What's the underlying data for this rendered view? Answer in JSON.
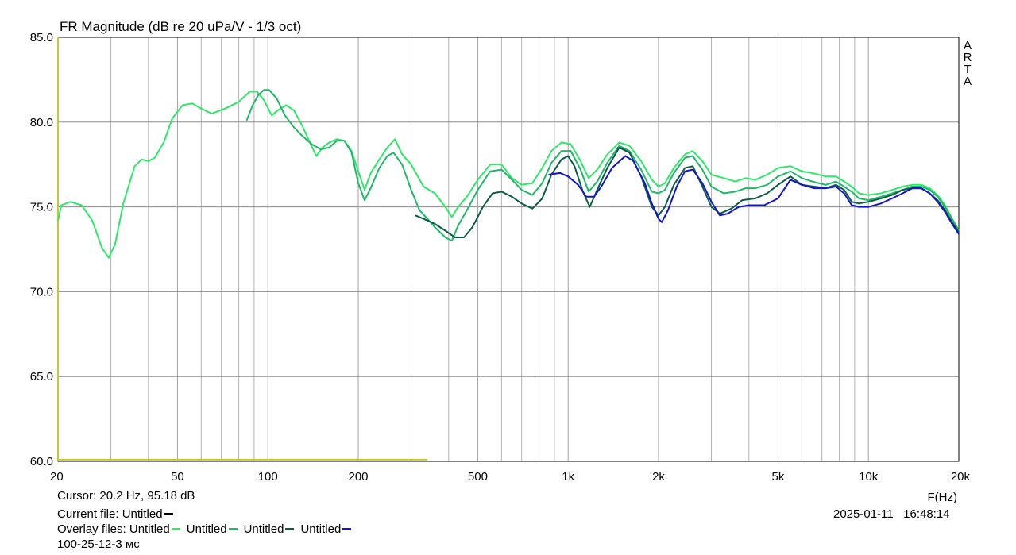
{
  "chart_data": {
    "type": "line",
    "title": "FR Magnitude (dB re 20 uPa/V - 1/3 oct)",
    "xlabel": "F(Hz)",
    "x_scale": "log",
    "xlim": [
      20,
      20000
    ],
    "ylim": [
      60,
      85
    ],
    "grid": true,
    "x_ticks": [
      20,
      50,
      100,
      200,
      500,
      1000,
      2000,
      5000,
      10000,
      20000
    ],
    "x_tick_labels": [
      "20",
      "50",
      "100",
      "200",
      "500",
      "1k",
      "2k",
      "5k",
      "10k",
      "20k"
    ],
    "x_minor_grid": [
      30,
      40,
      60,
      70,
      80,
      90,
      300,
      400,
      600,
      700,
      800,
      900,
      3000,
      4000,
      6000,
      7000,
      8000,
      9000
    ],
    "y_ticks": [
      60,
      65,
      70,
      75,
      80,
      85
    ],
    "y_tick_labels": [
      "60.0",
      "65.0",
      "70.0",
      "75.0",
      "80.0",
      "85.0"
    ],
    "side_label": "ARTA",
    "series": [
      {
        "color": "#c8c832",
        "points": [
          [
            20,
            60.1
          ],
          [
            20,
            85
          ],
          [
            20,
            60.1
          ],
          [
            340,
            60.1
          ]
        ]
      },
      {
        "color": "#2ee86a",
        "points": [
          [
            20,
            74.2
          ],
          [
            20.5,
            75.1
          ],
          [
            22,
            75.3
          ],
          [
            24,
            75.1
          ],
          [
            26,
            74.2
          ],
          [
            28,
            72.6
          ],
          [
            29.5,
            72.0
          ],
          [
            31,
            72.8
          ],
          [
            33,
            75.2
          ],
          [
            36,
            77.4
          ],
          [
            38,
            77.8
          ],
          [
            40,
            77.7
          ],
          [
            42,
            77.9
          ],
          [
            45,
            78.8
          ],
          [
            48,
            80.2
          ],
          [
            52,
            81.0
          ],
          [
            56,
            81.1
          ],
          [
            60,
            80.8
          ],
          [
            65,
            80.5
          ],
          [
            72,
            80.8
          ],
          [
            80,
            81.2
          ],
          [
            87,
            81.8
          ],
          [
            92,
            81.8
          ],
          [
            97,
            81.3
          ],
          [
            103,
            80.4
          ],
          [
            108,
            80.7
          ],
          [
            115,
            81.0
          ],
          [
            122,
            80.7
          ],
          [
            130,
            79.8
          ],
          [
            138,
            78.8
          ],
          [
            145,
            78.0
          ],
          [
            152,
            78.5
          ],
          [
            160,
            78.8
          ],
          [
            170,
            79.0
          ],
          [
            180,
            78.9
          ],
          [
            190,
            78.3
          ],
          [
            200,
            77.1
          ],
          [
            210,
            76.0
          ],
          [
            220,
            77.0
          ],
          [
            235,
            77.8
          ],
          [
            250,
            78.5
          ],
          [
            265,
            79.0
          ],
          [
            280,
            78.1
          ],
          [
            300,
            77.5
          ],
          [
            330,
            76.2
          ],
          [
            360,
            75.8
          ],
          [
            390,
            75.0
          ],
          [
            410,
            74.4
          ],
          [
            430,
            75.0
          ],
          [
            460,
            75.6
          ],
          [
            500,
            76.6
          ],
          [
            550,
            77.5
          ],
          [
            600,
            77.5
          ],
          [
            650,
            76.7
          ],
          [
            700,
            76.3
          ],
          [
            760,
            76.4
          ],
          [
            820,
            77.3
          ],
          [
            880,
            78.3
          ],
          [
            950,
            78.8
          ],
          [
            1020,
            78.7
          ],
          [
            1100,
            77.7
          ],
          [
            1170,
            76.7
          ],
          [
            1250,
            77.2
          ],
          [
            1350,
            78.1
          ],
          [
            1480,
            78.8
          ],
          [
            1600,
            78.6
          ],
          [
            1750,
            77.7
          ],
          [
            1900,
            76.6
          ],
          [
            2000,
            76.2
          ],
          [
            2100,
            76.4
          ],
          [
            2250,
            77.3
          ],
          [
            2450,
            78.1
          ],
          [
            2600,
            78.3
          ],
          [
            2800,
            77.7
          ],
          [
            3000,
            76.9
          ],
          [
            3300,
            76.7
          ],
          [
            3600,
            76.5
          ],
          [
            3900,
            76.7
          ],
          [
            4200,
            76.6
          ],
          [
            4600,
            76.9
          ],
          [
            5000,
            77.3
          ],
          [
            5500,
            77.4
          ],
          [
            6000,
            77.1
          ],
          [
            6500,
            77.0
          ],
          [
            7200,
            76.8
          ],
          [
            7800,
            76.8
          ],
          [
            8300,
            76.5
          ],
          [
            8800,
            76.2
          ],
          [
            9300,
            75.8
          ],
          [
            10000,
            75.7
          ],
          [
            11000,
            75.8
          ],
          [
            12000,
            76.0
          ],
          [
            13000,
            76.2
          ],
          [
            14000,
            76.3
          ],
          [
            15000,
            76.3
          ],
          [
            16000,
            76.1
          ],
          [
            17000,
            75.7
          ],
          [
            18000,
            75.1
          ],
          [
            19000,
            74.3
          ],
          [
            20000,
            73.6
          ]
        ]
      },
      {
        "color": "#1fb868",
        "points": [
          [
            85,
            80.1
          ],
          [
            89,
            81.0
          ],
          [
            93,
            81.6
          ],
          [
            97,
            81.9
          ],
          [
            101,
            81.9
          ],
          [
            107,
            81.4
          ],
          [
            114,
            80.4
          ],
          [
            122,
            79.7
          ],
          [
            130,
            79.2
          ],
          [
            140,
            78.7
          ],
          [
            150,
            78.4
          ],
          [
            160,
            78.5
          ],
          [
            170,
            78.9
          ],
          [
            180,
            78.9
          ],
          [
            190,
            78.2
          ],
          [
            200,
            76.4
          ],
          [
            210,
            75.4
          ],
          [
            220,
            76.1
          ],
          [
            235,
            77.3
          ],
          [
            250,
            78.0
          ],
          [
            262,
            78.2
          ],
          [
            280,
            77.5
          ],
          [
            300,
            76.0
          ],
          [
            320,
            74.8
          ],
          [
            340,
            74.3
          ],
          [
            360,
            73.8
          ],
          [
            390,
            73.2
          ],
          [
            410,
            73.0
          ],
          [
            430,
            73.9
          ],
          [
            460,
            74.8
          ],
          [
            500,
            76.0
          ],
          [
            550,
            77.1
          ],
          [
            600,
            77.2
          ],
          [
            650,
            76.6
          ],
          [
            700,
            76.0
          ],
          [
            760,
            75.7
          ],
          [
            820,
            76.4
          ],
          [
            880,
            77.6
          ],
          [
            950,
            78.3
          ],
          [
            1020,
            78.3
          ],
          [
            1100,
            77.2
          ],
          [
            1170,
            75.9
          ],
          [
            1250,
            76.5
          ],
          [
            1350,
            77.6
          ],
          [
            1480,
            78.6
          ],
          [
            1600,
            78.3
          ],
          [
            1750,
            77.2
          ],
          [
            1900,
            75.9
          ],
          [
            2000,
            75.8
          ],
          [
            2100,
            76.0
          ],
          [
            2250,
            77.0
          ],
          [
            2450,
            77.9
          ],
          [
            2600,
            78.0
          ],
          [
            2800,
            77.2
          ],
          [
            3000,
            76.2
          ],
          [
            3300,
            75.8
          ],
          [
            3600,
            75.9
          ],
          [
            3900,
            76.1
          ],
          [
            4200,
            76.1
          ],
          [
            4600,
            76.3
          ],
          [
            5000,
            76.8
          ],
          [
            5500,
            77.1
          ],
          [
            6000,
            76.7
          ],
          [
            6500,
            76.5
          ],
          [
            7200,
            76.3
          ],
          [
            7800,
            76.5
          ],
          [
            8300,
            76.2
          ],
          [
            8800,
            75.9
          ],
          [
            9300,
            75.5
          ],
          [
            10000,
            75.4
          ],
          [
            11000,
            75.6
          ],
          [
            12000,
            75.8
          ],
          [
            13000,
            76.0
          ],
          [
            14000,
            76.2
          ],
          [
            15000,
            76.2
          ],
          [
            16000,
            76.0
          ],
          [
            17000,
            75.6
          ],
          [
            18000,
            75.0
          ],
          [
            19000,
            74.3
          ],
          [
            20000,
            73.6
          ]
        ]
      },
      {
        "color": "#0b5c46",
        "points": [
          [
            310,
            74.5
          ],
          [
            330,
            74.3
          ],
          [
            360,
            74.0
          ],
          [
            390,
            73.6
          ],
          [
            420,
            73.2
          ],
          [
            450,
            73.2
          ],
          [
            480,
            73.8
          ],
          [
            520,
            75.0
          ],
          [
            560,
            75.8
          ],
          [
            600,
            75.9
          ],
          [
            650,
            75.6
          ],
          [
            700,
            75.2
          ],
          [
            760,
            74.9
          ],
          [
            820,
            75.5
          ],
          [
            880,
            76.9
          ],
          [
            950,
            77.8
          ],
          [
            1000,
            78.0
          ],
          [
            1050,
            77.4
          ],
          [
            1120,
            75.9
          ],
          [
            1180,
            75.0
          ],
          [
            1250,
            76.0
          ],
          [
            1350,
            77.3
          ],
          [
            1480,
            78.5
          ],
          [
            1600,
            78.2
          ],
          [
            1750,
            76.8
          ],
          [
            1900,
            75.0
          ],
          [
            2000,
            74.5
          ],
          [
            2100,
            75.0
          ],
          [
            2250,
            76.3
          ],
          [
            2450,
            77.3
          ],
          [
            2600,
            77.4
          ],
          [
            2800,
            76.2
          ],
          [
            3000,
            75.0
          ],
          [
            3200,
            74.6
          ],
          [
            3500,
            74.9
          ],
          [
            3800,
            75.4
          ],
          [
            4200,
            75.5
          ],
          [
            4600,
            75.8
          ],
          [
            5000,
            76.3
          ],
          [
            5500,
            76.8
          ],
          [
            6000,
            76.3
          ],
          [
            6600,
            76.2
          ],
          [
            7200,
            76.1
          ],
          [
            7800,
            76.3
          ],
          [
            8300,
            76.0
          ],
          [
            8800,
            75.3
          ],
          [
            9300,
            75.2
          ],
          [
            10000,
            75.3
          ],
          [
            11000,
            75.5
          ],
          [
            12000,
            75.7
          ],
          [
            13000,
            76.0
          ],
          [
            14000,
            76.1
          ],
          [
            15000,
            76.1
          ],
          [
            16000,
            75.8
          ],
          [
            17000,
            75.4
          ],
          [
            18000,
            74.8
          ],
          [
            19000,
            74.1
          ],
          [
            20000,
            73.5
          ]
        ]
      },
      {
        "color": "#1414c8",
        "points": [
          [
            860,
            76.9
          ],
          [
            940,
            77.0
          ],
          [
            1000,
            76.8
          ],
          [
            1080,
            76.3
          ],
          [
            1150,
            75.6
          ],
          [
            1220,
            75.6
          ],
          [
            1300,
            76.3
          ],
          [
            1400,
            77.3
          ],
          [
            1550,
            78.0
          ],
          [
            1650,
            77.7
          ],
          [
            1800,
            76.4
          ],
          [
            1900,
            75.2
          ],
          [
            2000,
            74.3
          ],
          [
            2050,
            74.1
          ],
          [
            2150,
            74.8
          ],
          [
            2300,
            76.2
          ],
          [
            2450,
            77.1
          ],
          [
            2600,
            77.2
          ],
          [
            2800,
            76.4
          ],
          [
            3000,
            75.3
          ],
          [
            3200,
            74.5
          ],
          [
            3400,
            74.6
          ],
          [
            3700,
            75.0
          ],
          [
            4000,
            75.1
          ],
          [
            4500,
            75.1
          ],
          [
            5000,
            75.5
          ],
          [
            5500,
            76.6
          ],
          [
            6000,
            76.3
          ],
          [
            6600,
            76.1
          ],
          [
            7200,
            76.1
          ],
          [
            7800,
            76.2
          ],
          [
            8300,
            75.8
          ],
          [
            8800,
            75.1
          ],
          [
            9300,
            75.0
          ],
          [
            10000,
            75.0
          ],
          [
            11000,
            75.2
          ],
          [
            12000,
            75.5
          ],
          [
            13000,
            75.8
          ],
          [
            14000,
            76.1
          ],
          [
            15000,
            76.1
          ],
          [
            16000,
            75.8
          ],
          [
            17000,
            75.3
          ],
          [
            18000,
            74.7
          ],
          [
            19000,
            74.0
          ],
          [
            20000,
            73.4
          ]
        ]
      }
    ]
  },
  "cursor": {
    "label": "Cursor:",
    "value": "20.2 Hz, 95.18 dB"
  },
  "current_file": {
    "label": "Current file:",
    "name": "Untitled",
    "color": "#000000"
  },
  "overlay": {
    "label": "Overlay files:",
    "items": [
      {
        "name": "Untitled",
        "color": "#2ee86a"
      },
      {
        "name": "Untitled",
        "color": "#1fb868"
      },
      {
        "name": "Untitled",
        "color": "#0b5c46"
      },
      {
        "name": "Untitled",
        "color": "#1414c8"
      }
    ]
  },
  "note": "100-25-12-3 мс",
  "timestamp": {
    "date": "2025-01-11",
    "time": "16:48:14"
  }
}
